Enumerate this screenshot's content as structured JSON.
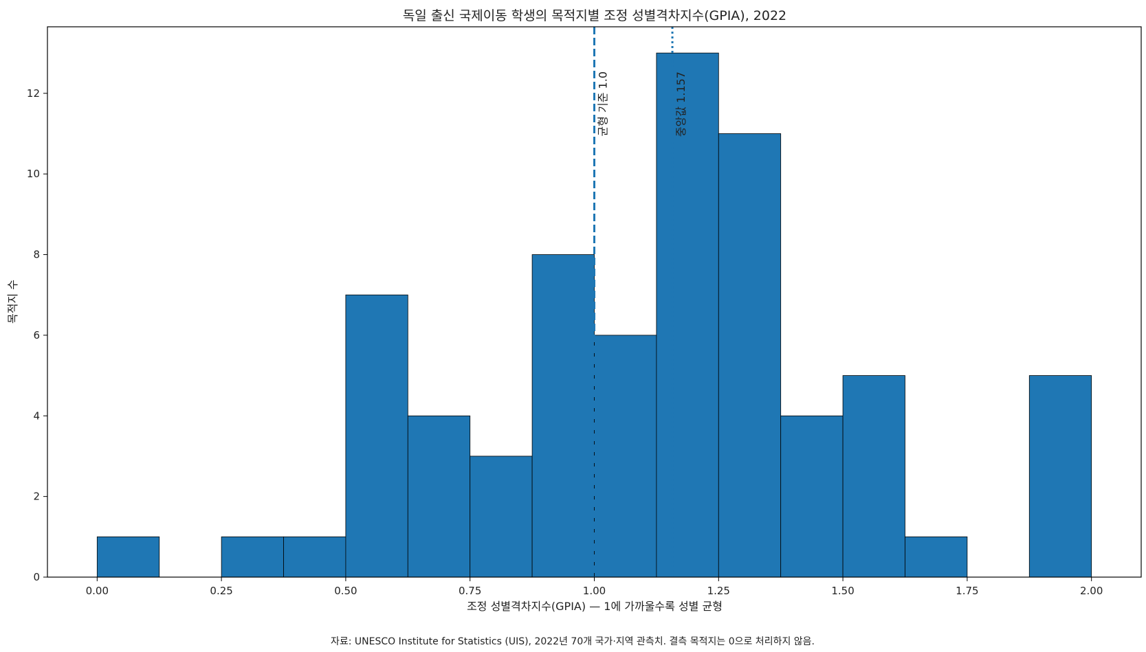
{
  "chart_data": {
    "type": "bar",
    "title": "독일 출신 국제이동 학생의 목적지별 조정 성별격차지수(GPIA), 2022",
    "xlabel": "조정 성별격차지수(GPIA) — 1에 가까울수록 성별 균형",
    "ylabel": "목적지 수",
    "bin_edges": [
      0.0,
      0.125,
      0.25,
      0.375,
      0.5,
      0.625,
      0.75,
      0.875,
      1.0,
      1.125,
      1.25,
      1.375,
      1.5,
      1.625,
      1.75,
      1.875,
      2.0
    ],
    "values": [
      1,
      0,
      1,
      1,
      7,
      4,
      3,
      8,
      6,
      13,
      11,
      4,
      5,
      1,
      0,
      5
    ],
    "xlim": [
      -0.1,
      2.1
    ],
    "ylim": [
      0,
      13.65
    ],
    "xticks": [
      "0.00",
      "0.25",
      "0.50",
      "0.75",
      "1.00",
      "1.25",
      "1.50",
      "1.75",
      "2.00"
    ],
    "yticks": [
      "0",
      "2",
      "4",
      "6",
      "8",
      "10",
      "12"
    ],
    "bar_color": "#1f77b4",
    "edge_color": "#000000",
    "grid": false,
    "reference_lines": [
      {
        "x": 1.0,
        "style": "dashed",
        "label": "균형 기준 1.0"
      },
      {
        "x": 1.157,
        "style": "dotted",
        "label": "중앙값 1.157"
      }
    ]
  },
  "footnote": "자료: UNESCO Institute for Statistics (UIS), 2022년 70개 국가·지역 관측치. 결측 목적지는 0으로 처리하지 않음."
}
